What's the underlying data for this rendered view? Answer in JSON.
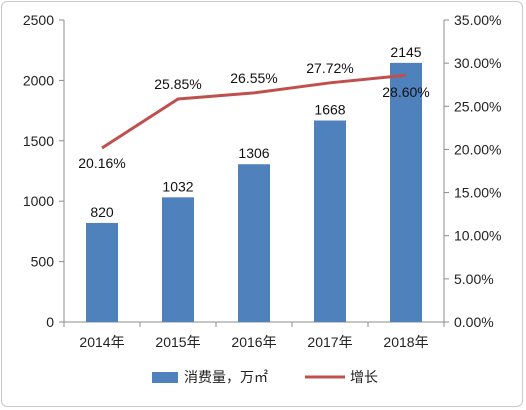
{
  "chart_data": {
    "type": "bar",
    "categories": [
      "2014年",
      "2015年",
      "2016年",
      "2017年",
      "2018年"
    ],
    "series": [
      {
        "name": "消费量，万㎡",
        "type": "bar",
        "axis": "left",
        "values": [
          820,
          1032,
          1306,
          1668,
          2145
        ],
        "data_labels": [
          "820",
          "1032",
          "1306",
          "1668",
          "2145"
        ],
        "color": "#4f81bd"
      },
      {
        "name": "增长",
        "type": "line",
        "axis": "right",
        "values": [
          20.16,
          25.85,
          26.55,
          27.72,
          28.6
        ],
        "data_labels": [
          "20.16%",
          "25.85%",
          "26.55%",
          "27.72%",
          "28.60%"
        ],
        "color": "#c0504d"
      }
    ],
    "left_axis": {
      "ylim": [
        0,
        2500
      ],
      "ticks": [
        0,
        500,
        1000,
        1500,
        2000,
        2500
      ],
      "tick_labels": [
        "0",
        "500",
        "1000",
        "1500",
        "2000",
        "2500"
      ]
    },
    "right_axis": {
      "ylim": [
        0,
        35
      ],
      "ticks": [
        0,
        5,
        10,
        15,
        20,
        25,
        30,
        35
      ],
      "tick_labels": [
        "0.00%",
        "5.00%",
        "10.00%",
        "15.00%",
        "20.00%",
        "25.00%",
        "30.00%",
        "35.00%"
      ]
    },
    "grid": false,
    "legend": "bottom"
  }
}
